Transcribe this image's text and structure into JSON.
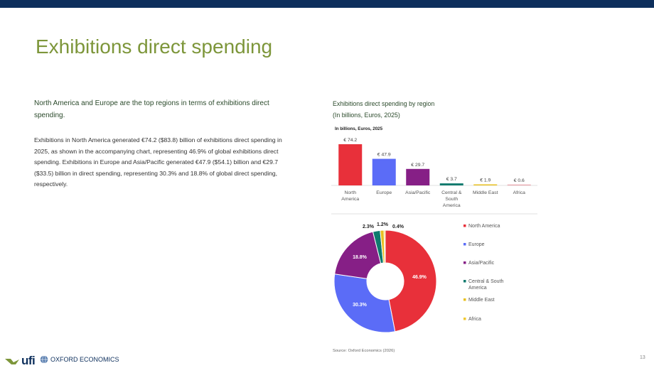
{
  "page": {
    "title": "Exhibitions direct spending",
    "lead": "North America and Europe are the top regions in terms of exhibitions direct spending.",
    "body": "Exhibitions in North America generated €74.2 ($83.8) billion of exhibitions direct spending in 2025, as shown in the accompanying chart, representing 46.9% of global exhibitions direct spending. Exhibitions in Europe and Asia/Pacific generated €47.9 ($54.1) billion and €29.7 ($33.5) billion in direct spending, representing 30.3% and 18.8% of global direct spending, respectively.",
    "chart_title": "Exhibitions direct spending by region",
    "chart_subtitle": "(In billions, Euros, 2025)",
    "source": "Source: Oxford Economics (2026)",
    "page_number": "13",
    "logo_ufi": "ufi",
    "logo_oe": "OXFORD ECONOMICS"
  },
  "chart_data": [
    {
      "type": "bar",
      "title": "In billions, Euros, 2025",
      "categories": [
        "North America",
        "Europe",
        "Asia/Pacific",
        "Central & South America",
        "Middle East",
        "Africa"
      ],
      "category_lines": [
        [
          "North",
          "America"
        ],
        [
          "Europe"
        ],
        [
          "Asia/Pacific"
        ],
        [
          "Central &",
          "South",
          "America"
        ],
        [
          "Middle East"
        ],
        [
          "Africa"
        ]
      ],
      "values": [
        74.2,
        47.9,
        29.7,
        3.7,
        1.9,
        0.6
      ],
      "labels": [
        "€ 74.2",
        "€ 47.9",
        "€ 29.7",
        "€ 3.7",
        "€ 1.9",
        "€ 0.6"
      ],
      "colors": [
        "#e8303a",
        "#5b6cf7",
        "#861f86",
        "#0f7a6e",
        "#e8c020",
        "#e8a0a8"
      ],
      "ylim": [
        0,
        74.2
      ],
      "grid": false
    },
    {
      "type": "pie",
      "donut": true,
      "categories": [
        "North America",
        "Europe",
        "Asia/Pacific",
        "Central & South America",
        "Middle East",
        "Africa"
      ],
      "values": [
        46.9,
        30.3,
        18.8,
        2.3,
        1.2,
        0.4
      ],
      "labels": [
        "46.9%",
        "30.3%",
        "18.8%",
        "2.3%",
        "1.2%",
        "0.4%"
      ],
      "colors": [
        "#e8303a",
        "#5b6cf7",
        "#861f86",
        "#0f7a6e",
        "#e8c020",
        "#f0c830"
      ],
      "legend": [
        "North America",
        "Europe",
        "Asia/Pacific",
        "Central & South America",
        "Middle East",
        "Africa"
      ],
      "legend_lines": [
        [
          "North America"
        ],
        [
          "Europe"
        ],
        [
          "Asia/Pacific"
        ],
        [
          "Central & South",
          "America"
        ],
        [
          "Middle East"
        ],
        [
          "Africa"
        ]
      ],
      "legend_position": "right"
    }
  ]
}
